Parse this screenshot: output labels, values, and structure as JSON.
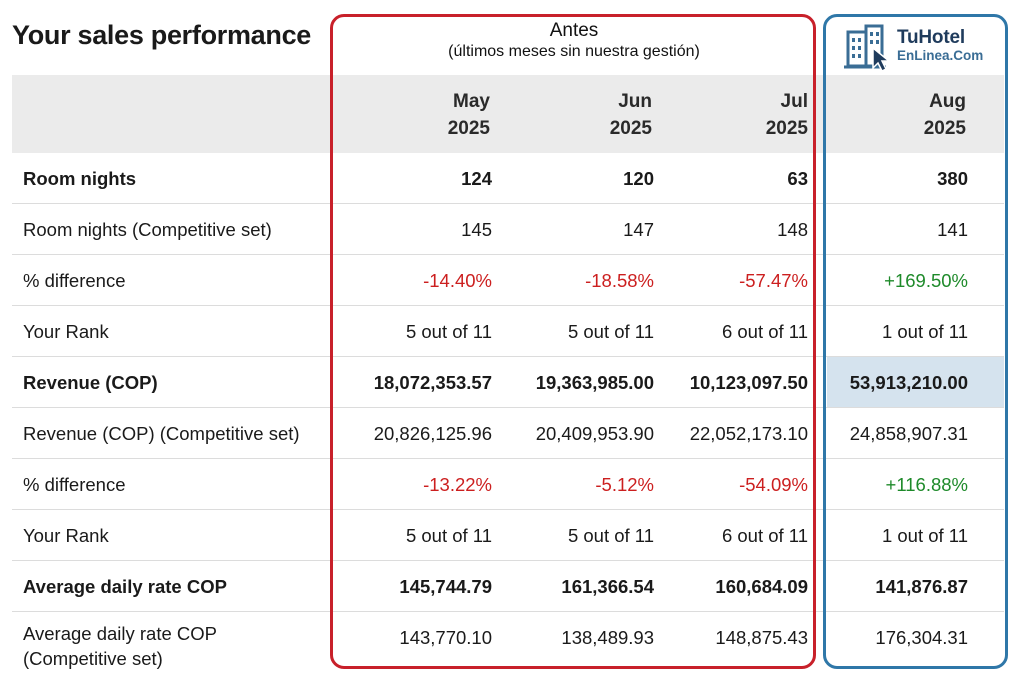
{
  "title": "Your sales performance",
  "before": {
    "title": "Antes",
    "subtitle": "(últimos meses sin nuestra gestión)"
  },
  "logo": {
    "line1": "TuHotel",
    "line2": "EnLinea.Com",
    "icon": "hotel-building-cursor-icon"
  },
  "colors": {
    "negative": "#cc1f1f",
    "positive": "#1e8a2a",
    "before_frame": "#c8202a",
    "after_frame": "#2f77a8",
    "highlight": "#d5e3ee"
  },
  "columns": [
    {
      "month": "May",
      "year": "2025"
    },
    {
      "month": "Jun",
      "year": "2025"
    },
    {
      "month": "Jul",
      "year": "2025"
    },
    {
      "month": "Aug",
      "year": "2025"
    }
  ],
  "rows": [
    {
      "label": "Room nights",
      "values": [
        "124",
        "120",
        "63",
        "380"
      ]
    },
    {
      "label": "Room nights (Competitive set)",
      "values": [
        "145",
        "147",
        "148",
        "141"
      ]
    },
    {
      "label": "% difference",
      "values": [
        "-14.40%",
        "-18.58%",
        "-57.47%",
        "+169.50%"
      ]
    },
    {
      "label": "Your Rank",
      "values": [
        "5 out of 11",
        "5 out of 11",
        "6 out of 11",
        "1 out of 11"
      ]
    },
    {
      "label": "Revenue (COP)",
      "values": [
        "18,072,353.57",
        "19,363,985.00",
        "10,123,097.50",
        "53,913,210.00"
      ]
    },
    {
      "label": "Revenue (COP) (Competitive set)",
      "values": [
        "20,826,125.96",
        "20,409,953.90",
        "22,052,173.10",
        "24,858,907.31"
      ]
    },
    {
      "label": "% difference",
      "values": [
        "-13.22%",
        "-5.12%",
        "-54.09%",
        "+116.88%"
      ]
    },
    {
      "label": "Your Rank",
      "values": [
        "5 out of 11",
        "5 out of 11",
        "6 out of 11",
        "1 out of 11"
      ]
    },
    {
      "label": "Average daily rate COP",
      "values": [
        "145,744.79",
        "161,366.54",
        "160,684.09",
        "141,876.87"
      ]
    },
    {
      "label": "Average daily rate COP (Competitive set)",
      "values": [
        "143,770.10",
        "138,489.93",
        "148,875.43",
        "176,304.31"
      ]
    }
  ]
}
